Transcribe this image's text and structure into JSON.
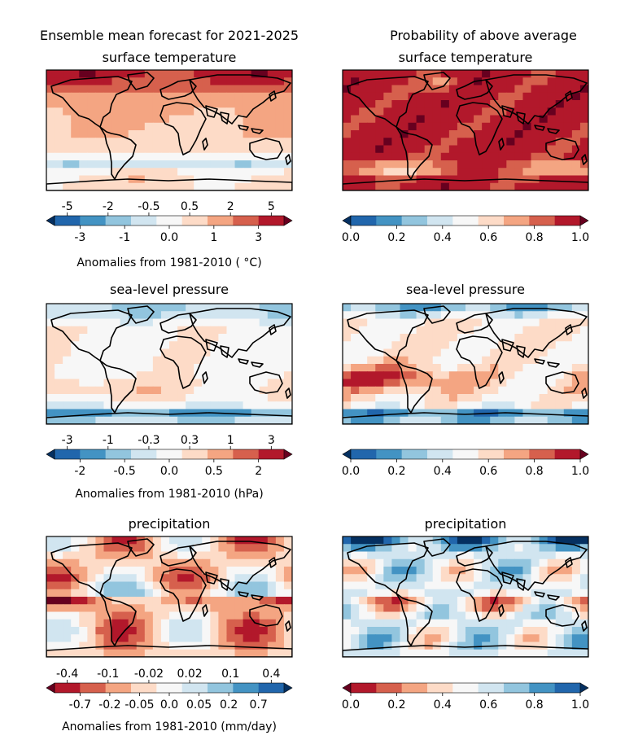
{
  "figure": {
    "left_heading": "Ensemble mean forecast for 2021-2025",
    "right_heading": "Probability of above average"
  },
  "colors": {
    "rdbu": [
      "#053061",
      "#2166ac",
      "#4393c3",
      "#92c5de",
      "#d1e5f0",
      "#f7f7f7",
      "#fddbc7",
      "#f4a582",
      "#d6604d",
      "#b2182b",
      "#67001f"
    ],
    "land_outline": "#000000"
  },
  "chart_data": [
    {
      "type": "heatmap",
      "id": "sat-anomaly",
      "title": "surface temperature",
      "field": "ensemble mean anomaly",
      "colorbar": {
        "top_ticks": [
          "-5",
          "-2",
          "-0.5",
          "0.5",
          "2",
          "5"
        ],
        "bottom_ticks": [
          "-3",
          "-1",
          "0.0",
          "1",
          "3"
        ],
        "label": "Anomalies from 1981-2010 ( °C)",
        "colormap": "RdBu_r",
        "extend": "both"
      }
    },
    {
      "type": "heatmap",
      "id": "sat-prob",
      "title": "surface temperature",
      "field": "probability of above average",
      "colorbar": {
        "bottom_ticks": [
          "0.0",
          "0.2",
          "0.4",
          "0.6",
          "0.8",
          "1.0"
        ],
        "colormap": "RdBu_r",
        "extend": "both"
      }
    },
    {
      "type": "heatmap",
      "id": "mslp-anomaly",
      "title": "sea-level pressure",
      "field": "ensemble mean anomaly",
      "colorbar": {
        "top_ticks": [
          "-3",
          "-1",
          "-0.3",
          "0.3",
          "1",
          "3"
        ],
        "bottom_ticks": [
          "-2",
          "-0.5",
          "0.0",
          "0.5",
          "2"
        ],
        "label": "Anomalies from 1981-2010 (hPa)",
        "colormap": "RdBu_r",
        "extend": "both"
      }
    },
    {
      "type": "heatmap",
      "id": "mslp-prob",
      "title": "sea-level pressure",
      "field": "probability of above average",
      "colorbar": {
        "bottom_ticks": [
          "0.0",
          "0.2",
          "0.4",
          "0.6",
          "0.8",
          "1.0"
        ],
        "colormap": "RdBu_r",
        "extend": "both"
      }
    },
    {
      "type": "heatmap",
      "id": "precip-anomaly",
      "title": "precipitation",
      "field": "ensemble mean anomaly",
      "colorbar": {
        "top_ticks": [
          "-0.4",
          "-0.1",
          "-0.02",
          "0.02",
          "0.1",
          "0.4"
        ],
        "bottom_ticks": [
          "-0.7",
          "-0.2",
          "-0.05",
          "0.0",
          "0.05",
          "0.2",
          "0.7"
        ],
        "label": "Anomalies from 1981-2010 (mm/day)",
        "colormap": "RdBu",
        "extend": "both"
      }
    },
    {
      "type": "heatmap",
      "id": "precip-prob",
      "title": "precipitation",
      "field": "probability of above average",
      "colorbar": {
        "bottom_ticks": [
          "0.0",
          "0.2",
          "0.4",
          "0.6",
          "0.8",
          "1.0"
        ],
        "colormap": "RdBu",
        "extend": "both"
      }
    }
  ]
}
